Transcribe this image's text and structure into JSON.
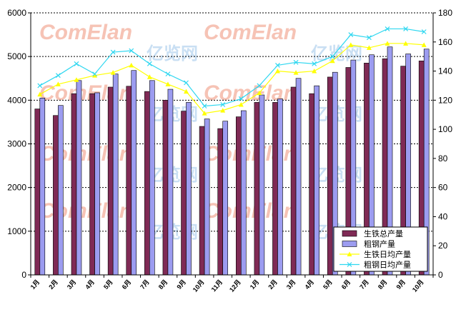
{
  "chart_data": {
    "type": "bar",
    "title": "",
    "categories": [
      "1月",
      "2月",
      "3月",
      "4月",
      "5月",
      "6月",
      "7月",
      "8月",
      "9月",
      "10月",
      "11月",
      "12月",
      "1月",
      "2月",
      "3月",
      "4月",
      "5月",
      "6月",
      "7月",
      "8月",
      "9月",
      "10月"
    ],
    "series": [
      {
        "name": "生铁总产量",
        "axis": "left",
        "kind": "bar",
        "values": [
          3800,
          3650,
          4150,
          4150,
          4300,
          4320,
          4200,
          4000,
          3750,
          3400,
          3350,
          3620,
          3950,
          3950,
          4300,
          4150,
          4530,
          4750,
          4850,
          4950,
          4780,
          4900
        ]
      },
      {
        "name": "粗钢产量",
        "axis": "left",
        "kind": "bar",
        "values": [
          4050,
          3880,
          4450,
          4170,
          4600,
          4680,
          4450,
          4250,
          3950,
          3570,
          3520,
          3760,
          4120,
          4030,
          4500,
          4330,
          4640,
          4920,
          5040,
          5220,
          5060,
          5170
        ]
      },
      {
        "name": "生铁日均产量",
        "axis": "right",
        "kind": "line",
        "values": [
          124,
          131,
          134,
          137,
          139,
          144,
          136,
          131,
          126,
          111,
          113,
          117,
          125,
          140,
          139,
          140,
          147,
          158,
          156,
          159,
          159,
          158
        ]
      },
      {
        "name": "粗钢日均产量",
        "axis": "right",
        "kind": "line",
        "values": [
          130,
          137,
          145,
          138,
          153,
          154,
          145,
          138,
          132,
          116,
          117,
          121,
          130,
          144,
          146,
          145,
          150,
          165,
          163,
          169,
          169,
          167
        ]
      }
    ],
    "y_left": {
      "min": 0,
      "max": 6000,
      "ticks": [
        0,
        1000,
        2000,
        3000,
        4000,
        5000,
        6000
      ]
    },
    "y_right": {
      "min": 0,
      "max": 180,
      "ticks": [
        0,
        20,
        40,
        60,
        80,
        100,
        120,
        140,
        160,
        180
      ]
    },
    "legend_position": "bottom-right",
    "gridlines": true
  },
  "colors": {
    "bar_pig_iron": "#7f2a55",
    "bar_crude_steel": "#9c9cf0",
    "line_pig_iron": "#ffff00",
    "line_crude_steel": "#2fd7f0",
    "plot_bg": "#ffffff",
    "grid": "#000000"
  },
  "watermark": {
    "text_latin": "ComElan",
    "text_cn": "亿览网",
    "text_small": ".com"
  }
}
